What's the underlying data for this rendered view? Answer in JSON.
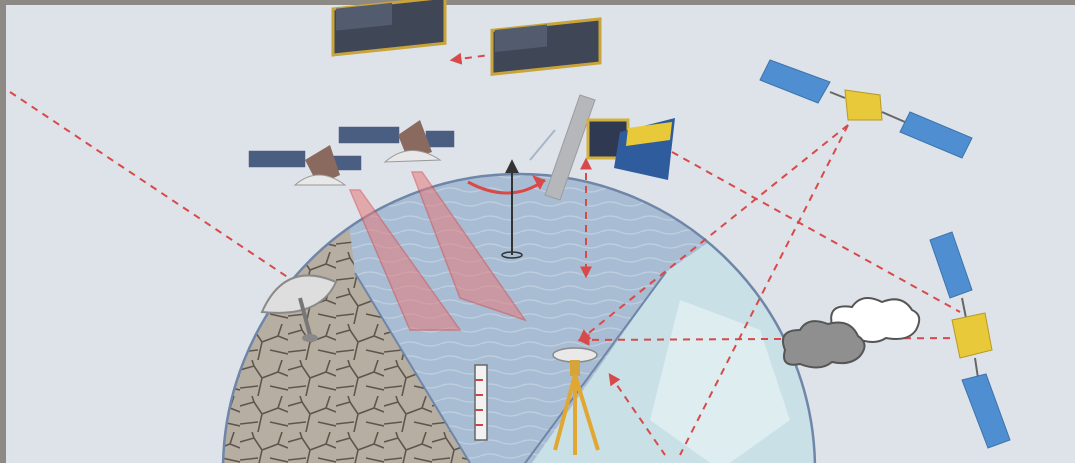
{
  "colors": {
    "frame": "#8d8985",
    "panel": "#dde3e9",
    "guide": "#d84a4a",
    "beam": "#e77b7b",
    "ocean": "#a8bdd3",
    "ice": "#c9e0e6",
    "soil": "#b7aea2",
    "panel_blue": "#4f8fd1",
    "gold_body": "#e8c93a",
    "dark_panel": "#414b5c"
  },
  "icons": {
    "antenna": "radar-dish-icon",
    "gauge": "tide-gauge-icon",
    "gnss": "gnss-station-icon",
    "cloud": "cloud-icon"
  }
}
